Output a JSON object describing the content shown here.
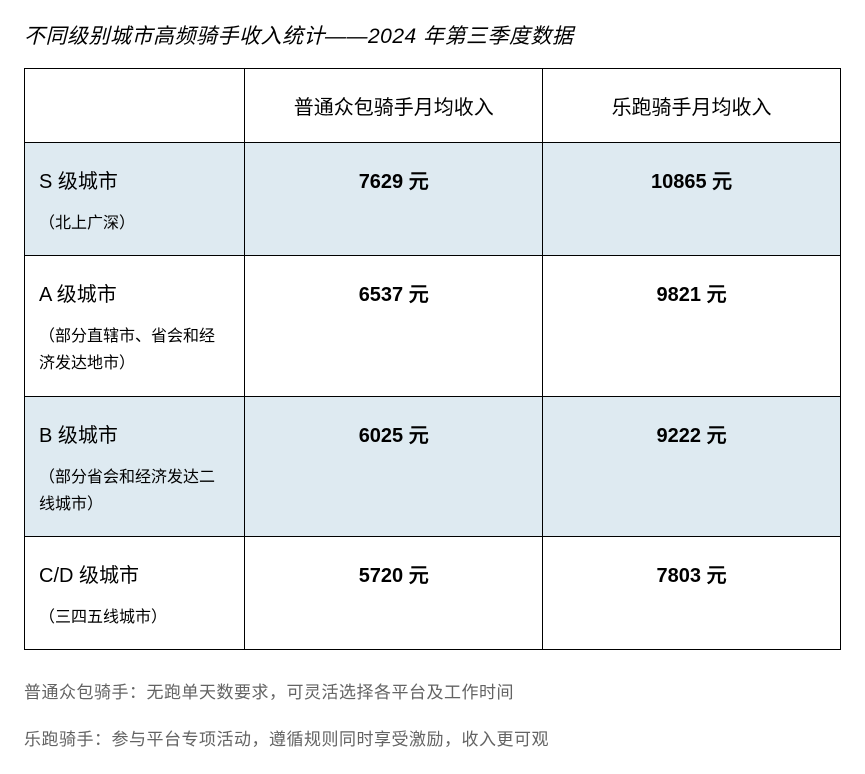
{
  "title": "不同级别城市高频骑手收入统计——2024 年第三季度数据",
  "table": {
    "columns": [
      "",
      "普通众包骑手月均收入",
      "乐跑骑手月均收入"
    ],
    "column_widths_pct": [
      27,
      36.5,
      36.5
    ],
    "header_fontsize": 20,
    "tier_fontsize": 20,
    "desc_fontsize": 16,
    "data_fontsize": 20,
    "data_fontweight": "bold",
    "border_color": "#000000",
    "shaded_bg": "#deeaf1",
    "rows": [
      {
        "tier": "S 级城市",
        "desc": "（北上广深）",
        "col1": "7629 元",
        "col2": "10865 元",
        "shaded": true
      },
      {
        "tier": "A 级城市",
        "desc": "（部分直辖市、省会和经济发达地市）",
        "col1": "6537 元",
        "col2": "9821 元",
        "shaded": false
      },
      {
        "tier": "B 级城市",
        "desc": "（部分省会和经济发达二线城市）",
        "col1": "6025 元",
        "col2": "9222 元",
        "shaded": true
      },
      {
        "tier": "C/D 级城市",
        "desc": "（三四五线城市）",
        "col1": "5720 元",
        "col2": "7803 元",
        "shaded": false
      }
    ]
  },
  "footnotes": {
    "line1": "普通众包骑手：无跑单天数要求，可灵活选择各平台及工作时间",
    "line2": "乐跑骑手：参与平台专项活动，遵循规则同时享受激励，收入更可观"
  },
  "colors": {
    "title_color": "#000000",
    "text_color": "#000000",
    "footnote_color": "#636363",
    "background": "#ffffff"
  },
  "title_fontsize": 21,
  "footnote_fontsize": 17
}
